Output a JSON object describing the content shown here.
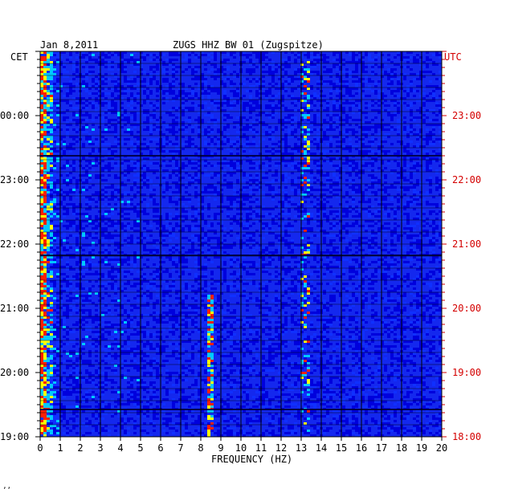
{
  "header": {
    "date": "Jan 8,2011",
    "station": "ZUGS HHZ BW 01 (Zugspitze)"
  },
  "corner_mark": "ʼʼ",
  "chart_data": {
    "type": "heatmap",
    "title": "ZUGS HHZ BW 01 (Zugspitze)",
    "date": "Jan 8,2011",
    "xlabel": "FREQUENCY (HZ)",
    "xlim": [
      0,
      20
    ],
    "x_ticks": [
      "0",
      "1",
      "2",
      "3",
      "4",
      "5",
      "6",
      "7",
      "8",
      "9",
      "10",
      "11",
      "12",
      "13",
      "14",
      "15",
      "16",
      "17",
      "18",
      "19",
      "20"
    ],
    "left_axis": {
      "label": "CET",
      "ticks": [
        "00:00",
        "23:00",
        "22:00",
        "21:00",
        "20:00",
        "19:00"
      ]
    },
    "right_axis": {
      "label": "UTC",
      "ticks": [
        "23:00",
        "22:00",
        "21:00",
        "20:00",
        "19:00",
        "18:00"
      ]
    },
    "grid": true,
    "colormap": [
      "#00007a",
      "#0000dd",
      "#1030ff",
      "#00c8ff",
      "#ffff00",
      "#ff2000"
    ],
    "features": [
      {
        "desc": "persistent low-frequency energy",
        "freq_range_hz": [
          0,
          1
        ]
      },
      {
        "desc": "narrow tone near 8.5 Hz",
        "freq_hz": 8.5
      },
      {
        "desc": "intermittent signal near 13.2 Hz",
        "freq_hz": 13.2
      },
      {
        "desc": "broadband bursts",
        "freq_range_hz": [
          1,
          5
        ]
      }
    ]
  },
  "colors": {
    "plot_background": "#1428ee",
    "grid": "#000000",
    "utc_label": "#d40000"
  }
}
